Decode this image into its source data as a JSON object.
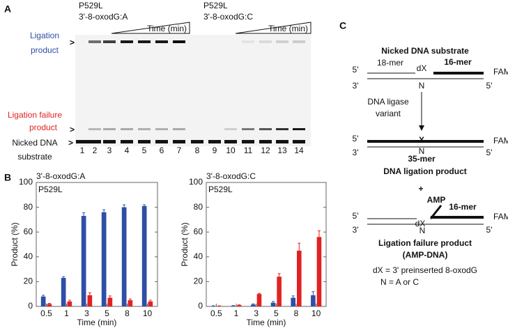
{
  "panel_labels": [
    "A",
    "B",
    "C"
  ],
  "gel": {
    "headers": [
      {
        "construct": "P529L",
        "pair": "3'-8-oxodG:A",
        "time_axis": "Time (min)"
      },
      {
        "construct": "P529L",
        "pair": "3'-8-oxodG:C",
        "time_axis": "Time (min)"
      }
    ],
    "bands": {
      "ligation_product": [
        "Ligation",
        "product"
      ],
      "ligation_failure_product": [
        "Ligation failure",
        "product"
      ],
      "nicked_dna_substrate": [
        "Nicked DNA",
        "substrate"
      ]
    },
    "lanes": [
      1,
      2,
      3,
      4,
      5,
      6,
      7,
      8,
      9,
      10,
      11,
      12,
      13,
      14
    ]
  },
  "chart_data": [
    {
      "type": "bar",
      "title": "3'-8-oxodG:A",
      "subtitle": "P529L",
      "x_label": "Time (min)",
      "y_label": "Product (%)",
      "categories": [
        "0.5",
        "1",
        "3",
        "5",
        "8",
        "10"
      ],
      "series": [
        {
          "color": "#2f4ea6",
          "values": [
            8,
            23,
            73,
            76,
            80,
            81
          ],
          "errors": [
            1,
            1,
            2.5,
            2,
            2,
            1
          ]
        },
        {
          "color": "#e02222",
          "values": [
            2,
            4,
            9,
            7,
            5,
            4
          ],
          "errors": [
            0.5,
            1,
            2,
            1.5,
            1,
            1
          ]
        }
      ],
      "ylim": [
        0,
        100
      ],
      "yticks": [
        0,
        20,
        40,
        60,
        80,
        100
      ]
    },
    {
      "type": "bar",
      "title": "3'-8-oxodG:C",
      "subtitle": "P529L",
      "x_label": "Time (min)",
      "y_label": "Product (%)",
      "categories": [
        "0.5",
        "1",
        "3",
        "5",
        "8",
        "10"
      ],
      "series": [
        {
          "color": "#2f4ea6",
          "values": [
            0.3,
            0.5,
            1.5,
            3,
            7,
            9
          ],
          "errors": [
            0.2,
            0.2,
            0.5,
            1,
            1.5,
            3
          ]
        },
        {
          "color": "#e02222",
          "values": [
            0.3,
            1,
            10,
            24,
            45,
            56
          ],
          "errors": [
            0.2,
            0.3,
            0.5,
            2.5,
            6,
            5
          ]
        }
      ],
      "ylim": [
        0,
        100
      ],
      "yticks": [
        0,
        20,
        40,
        60,
        80,
        100
      ]
    }
  ],
  "diagram": {
    "title": "Nicked DNA substrate",
    "substrate": {
      "five_prime_left": "5'",
      "upstream": "18-mer",
      "dx": "dX",
      "downstream": "16-mer",
      "fam": "FAM",
      "three_prime": "3'",
      "template_base": "N",
      "five_prime_right": "5'"
    },
    "enzyme": [
      "DNA ligase",
      "variant"
    ],
    "product": {
      "five_prime_left": "5'",
      "x": "X",
      "fam": "FAM",
      "three_prime": "3'",
      "template_base": "N",
      "length": "35-mer",
      "five_prime_right": "5'",
      "label": "DNA ligation product"
    },
    "plus": "+",
    "failure": {
      "amp": "AMP",
      "five_prime_left": "5'",
      "dx": "dX",
      "downstream": "16-mer",
      "fam": "FAM",
      "three_prime": "3'",
      "template_base": "N",
      "five_prime_right": "5'",
      "label": [
        "Ligation failure product",
        "(AMP-DNA)"
      ]
    },
    "notes": [
      "dX = 3' preinserted 8-oxodG",
      "N = A or C"
    ]
  }
}
